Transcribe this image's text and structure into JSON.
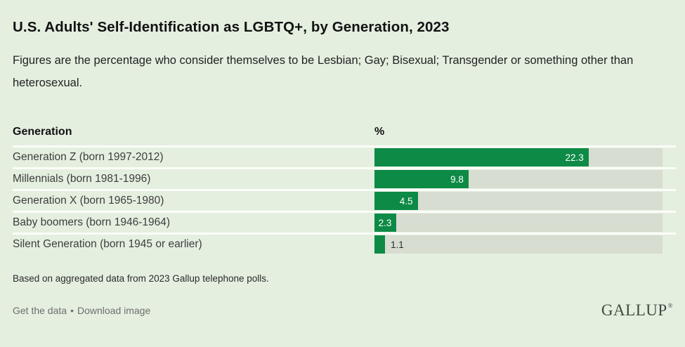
{
  "page": {
    "title": "U.S. Adults' Self-Identification as LGBTQ+, by Generation, 2023",
    "subtitle": "Figures are the percentage who consider themselves to be Lesbian; Gay; Bisexual; Transgender or something other than heterosexual.",
    "footnote": "Based on aggregated data from 2023 Gallup telephone polls.",
    "links": {
      "get_data": "Get the data",
      "separator": "•",
      "download_image": "Download image"
    },
    "logo": {
      "text": "GALLUP",
      "mark": "®"
    }
  },
  "colors": {
    "background": "#e4efe0",
    "bar": "#0e8a47",
    "track": "#d8ddd1",
    "separator": "#fbfdf9",
    "value_label_inside": "#ffffff",
    "value_label_outside": "#2e2e2e"
  },
  "chart_data": {
    "type": "bar",
    "orientation": "horizontal",
    "title": "U.S. Adults' Self-Identification as LGBTQ+, by Generation, 2023",
    "column_headers": {
      "category": "Generation",
      "value": "%"
    },
    "categories": [
      "Generation Z (born 1997-2012)",
      "Millennials (born 1981-1996)",
      "Generation X (born 1965-1980)",
      "Baby boomers (born 1946-1964)",
      "Silent Generation (born 1945 or earlier)"
    ],
    "values": [
      22.3,
      9.8,
      4.5,
      2.3,
      1.1
    ],
    "value_labels": [
      "22.3",
      "9.8",
      "4.5",
      "2.3",
      "1.1"
    ],
    "xlim": [
      0,
      30
    ],
    "grid": false,
    "legend": false
  }
}
